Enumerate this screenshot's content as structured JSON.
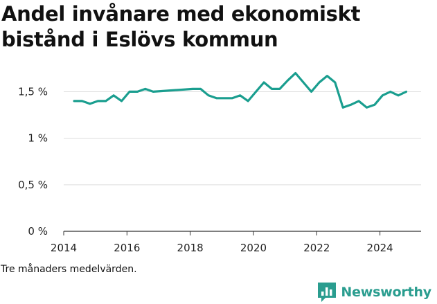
{
  "title_line1": "Andel invånare med ekonomiskt",
  "title_line2": "bistånd i Eslövs kommun",
  "footnote": "Tre månaders medelvärden.",
  "brand": {
    "name": "Newsworthy",
    "icon": "bar-chart-logo-icon",
    "color": "#2a9d8f"
  },
  "chart_data": {
    "type": "line",
    "x_ticks": [
      2014,
      2016,
      2018,
      2020,
      2022,
      2024
    ],
    "y_ticks": [
      {
        "value": 0,
        "label": "0 %"
      },
      {
        "value": 0.5,
        "label": "0,5 %"
      },
      {
        "value": 1,
        "label": "1 %"
      },
      {
        "value": 1.5,
        "label": "1,5 %"
      }
    ],
    "xlim": [
      2014,
      2025.3
    ],
    "ylim": [
      0,
      1.6
    ],
    "grid": true,
    "series": [
      {
        "color": "#1a9e8f",
        "points": [
          [
            2014.33,
            1.4
          ],
          [
            2014.58,
            1.4
          ],
          [
            2014.83,
            1.37
          ],
          [
            2015.08,
            1.4
          ],
          [
            2015.33,
            1.4
          ],
          [
            2015.58,
            1.46
          ],
          [
            2015.83,
            1.4
          ],
          [
            2016.08,
            1.5
          ],
          [
            2016.33,
            1.5
          ],
          [
            2016.58,
            1.53
          ],
          [
            2016.83,
            1.5
          ],
          [
            2018.08,
            1.53
          ],
          [
            2018.33,
            1.53
          ],
          [
            2018.58,
            1.46
          ],
          [
            2018.83,
            1.43
          ],
          [
            2019.08,
            1.43
          ],
          [
            2019.33,
            1.43
          ],
          [
            2019.58,
            1.46
          ],
          [
            2019.83,
            1.4
          ],
          [
            2020.08,
            1.5
          ],
          [
            2020.33,
            1.6
          ],
          [
            2020.58,
            1.53
          ],
          [
            2020.83,
            1.53
          ],
          [
            2021.08,
            1.62
          ],
          [
            2021.33,
            1.7
          ],
          [
            2021.58,
            1.6
          ],
          [
            2021.83,
            1.5
          ],
          [
            2022.08,
            1.6
          ],
          [
            2022.33,
            1.67
          ],
          [
            2022.58,
            1.6
          ],
          [
            2022.83,
            1.33
          ],
          [
            2023.08,
            1.36
          ],
          [
            2023.33,
            1.4
          ],
          [
            2023.58,
            1.33
          ],
          [
            2023.83,
            1.36
          ],
          [
            2024.08,
            1.46
          ],
          [
            2024.33,
            1.5
          ],
          [
            2024.58,
            1.46
          ],
          [
            2024.83,
            1.5
          ]
        ]
      }
    ]
  }
}
